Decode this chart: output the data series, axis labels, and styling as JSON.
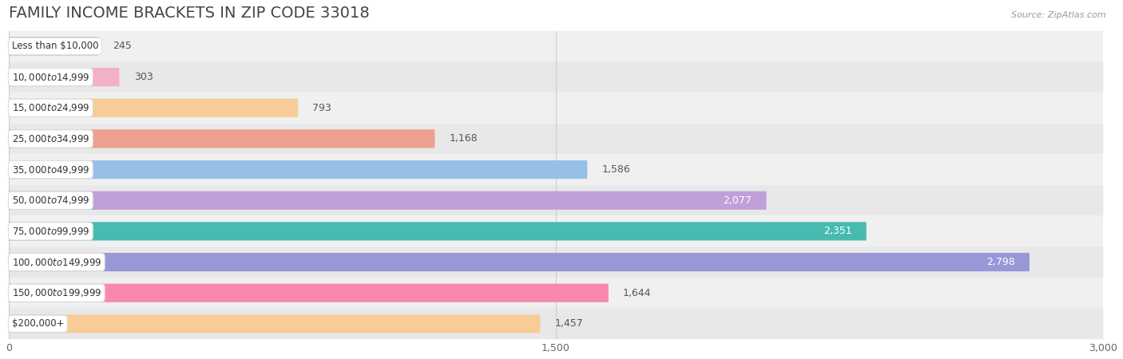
{
  "title": "FAMILY INCOME BRACKETS IN ZIP CODE 33018",
  "source": "Source: ZipAtlas.com",
  "categories": [
    "Less than $10,000",
    "$10,000 to $14,999",
    "$15,000 to $24,999",
    "$25,000 to $34,999",
    "$35,000 to $49,999",
    "$50,000 to $74,999",
    "$75,000 to $99,999",
    "$100,000 to $149,999",
    "$150,000 to $199,999",
    "$200,000+"
  ],
  "values": [
    245,
    303,
    793,
    1168,
    1586,
    2077,
    2351,
    2798,
    1644,
    1457
  ],
  "bar_colors": [
    "#b8b4e0",
    "#f4b0c8",
    "#f7cc98",
    "#eca090",
    "#96c0e8",
    "#c0a0d8",
    "#48bbb0",
    "#9898d8",
    "#f888b0",
    "#f7cc98"
  ],
  "label_inside": [
    false,
    false,
    false,
    false,
    false,
    true,
    true,
    true,
    false,
    false
  ],
  "xlim": [
    0,
    3000
  ],
  "xticks": [
    0,
    1500,
    3000
  ],
  "background_color": "#f5f5f5",
  "row_colors": [
    "#f0f0f0",
    "#e8e8e8"
  ],
  "title_fontsize": 14,
  "bar_height": 0.6,
  "label_fontsize": 9,
  "value_fontsize": 9
}
